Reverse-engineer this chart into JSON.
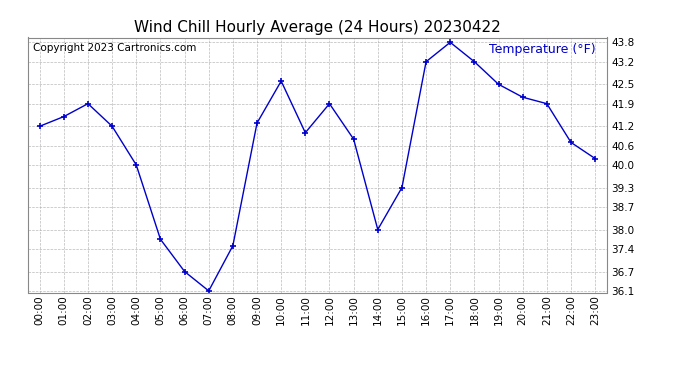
{
  "title": "Wind Chill Hourly Average (24 Hours) 20230422",
  "copyright_text": "Copyright 2023 Cartronics.com",
  "ylabel": "Temperature (°F)",
  "line_color": "#0000cc",
  "marker": "+",
  "marker_color": "#0000cc",
  "background_color": "#ffffff",
  "grid_color": "#aaaaaa",
  "hours": [
    "00:00",
    "01:00",
    "02:00",
    "03:00",
    "04:00",
    "05:00",
    "06:00",
    "07:00",
    "08:00",
    "09:00",
    "10:00",
    "11:00",
    "12:00",
    "13:00",
    "14:00",
    "15:00",
    "16:00",
    "17:00",
    "18:00",
    "19:00",
    "20:00",
    "21:00",
    "22:00",
    "23:00"
  ],
  "values": [
    41.2,
    41.5,
    41.9,
    41.2,
    40.0,
    37.7,
    36.7,
    36.1,
    37.5,
    41.3,
    42.6,
    41.0,
    41.9,
    40.8,
    38.0,
    39.3,
    43.2,
    43.8,
    43.2,
    42.5,
    42.1,
    41.9,
    40.7,
    40.2
  ],
  "ylim_min": 36.1,
  "ylim_max": 43.8,
  "yticks": [
    36.1,
    36.7,
    37.4,
    38.0,
    38.7,
    39.3,
    40.0,
    40.6,
    41.2,
    41.9,
    42.5,
    43.2,
    43.8
  ],
  "title_color": "#000000",
  "ylabel_color": "#0000cc",
  "title_fontsize": 11,
  "ylabel_fontsize": 9,
  "copyright_fontsize": 7.5,
  "tick_fontsize": 7.5
}
